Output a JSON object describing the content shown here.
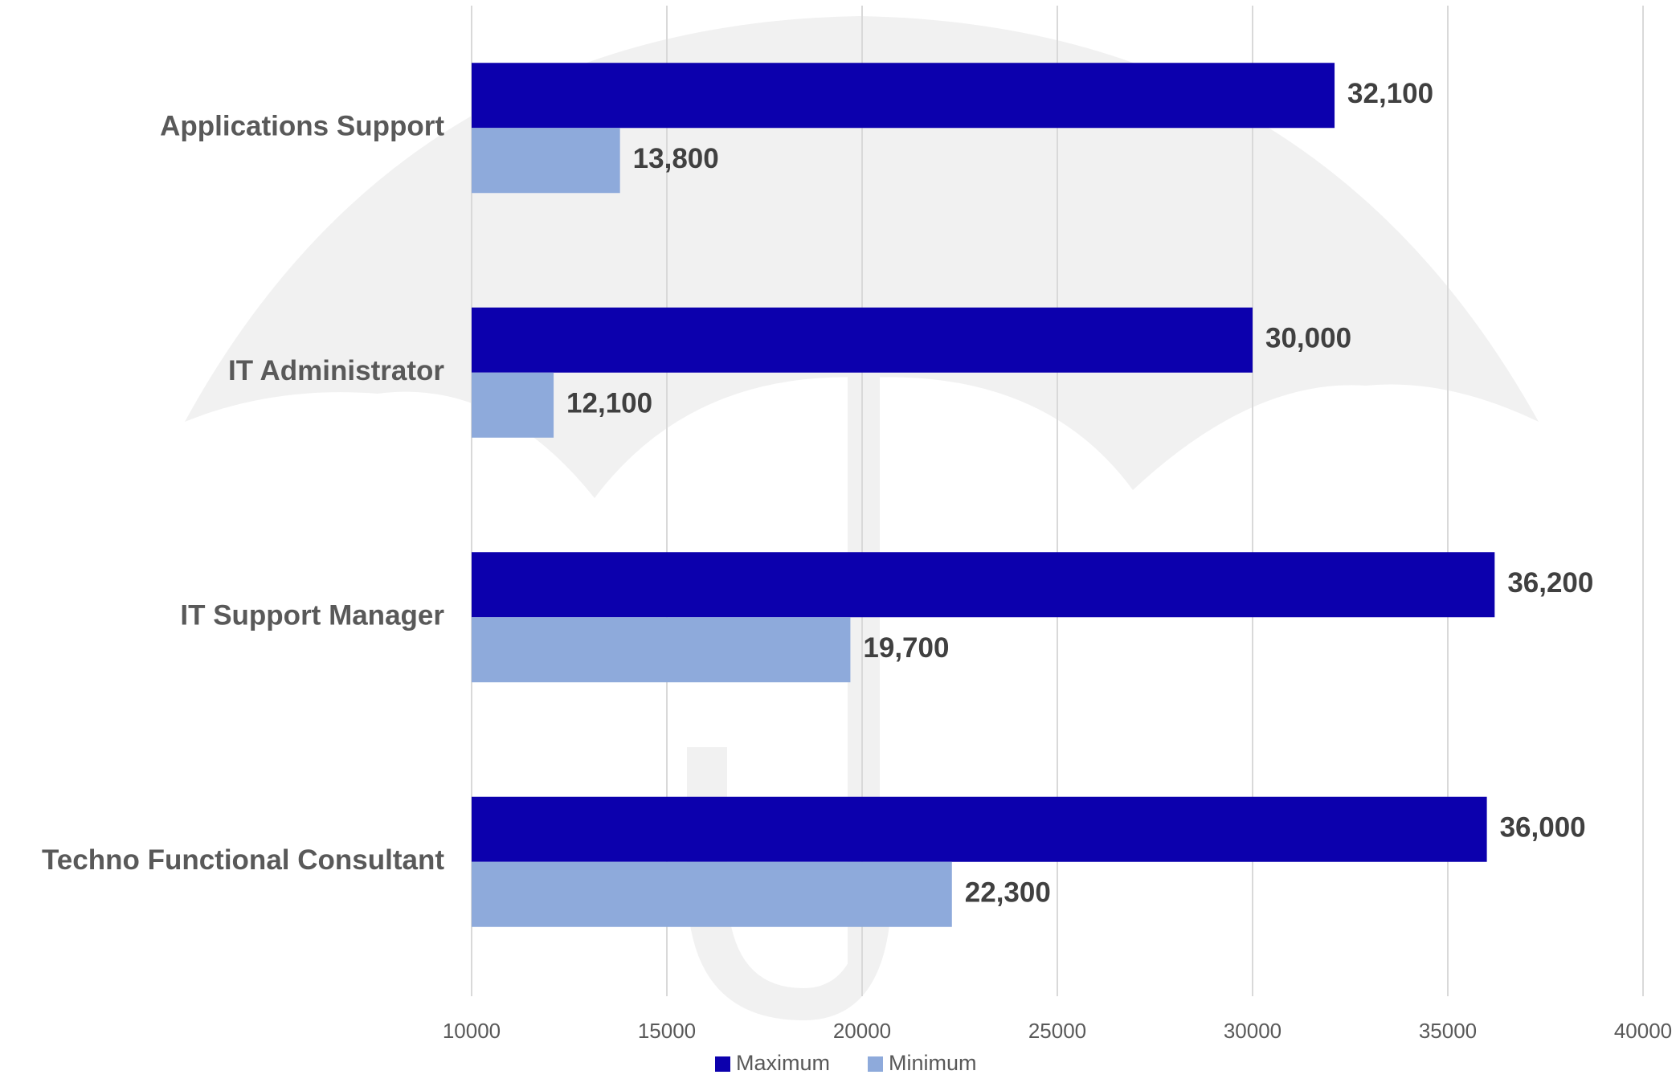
{
  "chart_data": {
    "type": "hbar",
    "categories": [
      "Applications Support",
      "IT Administrator",
      "IT Support Manager",
      "Techno Functional Consultant"
    ],
    "series": [
      {
        "name": "Maximum",
        "color": "#0c00ad",
        "values": [
          32100,
          30000,
          36200,
          36000
        ],
        "value_labels": [
          "32,100",
          "30,000",
          "36,200",
          "36,000"
        ]
      },
      {
        "name": "Minimum",
        "color": "#8eaadb",
        "values": [
          13800,
          12100,
          19700,
          22300
        ],
        "value_labels": [
          "13,800",
          "12,100",
          "19,700",
          "22,300"
        ]
      }
    ],
    "xlim": [
      10000,
      40000
    ],
    "xticks": [
      10000,
      15000,
      20000,
      25000,
      30000,
      35000,
      40000
    ],
    "grid": true,
    "legend": "bottom"
  }
}
